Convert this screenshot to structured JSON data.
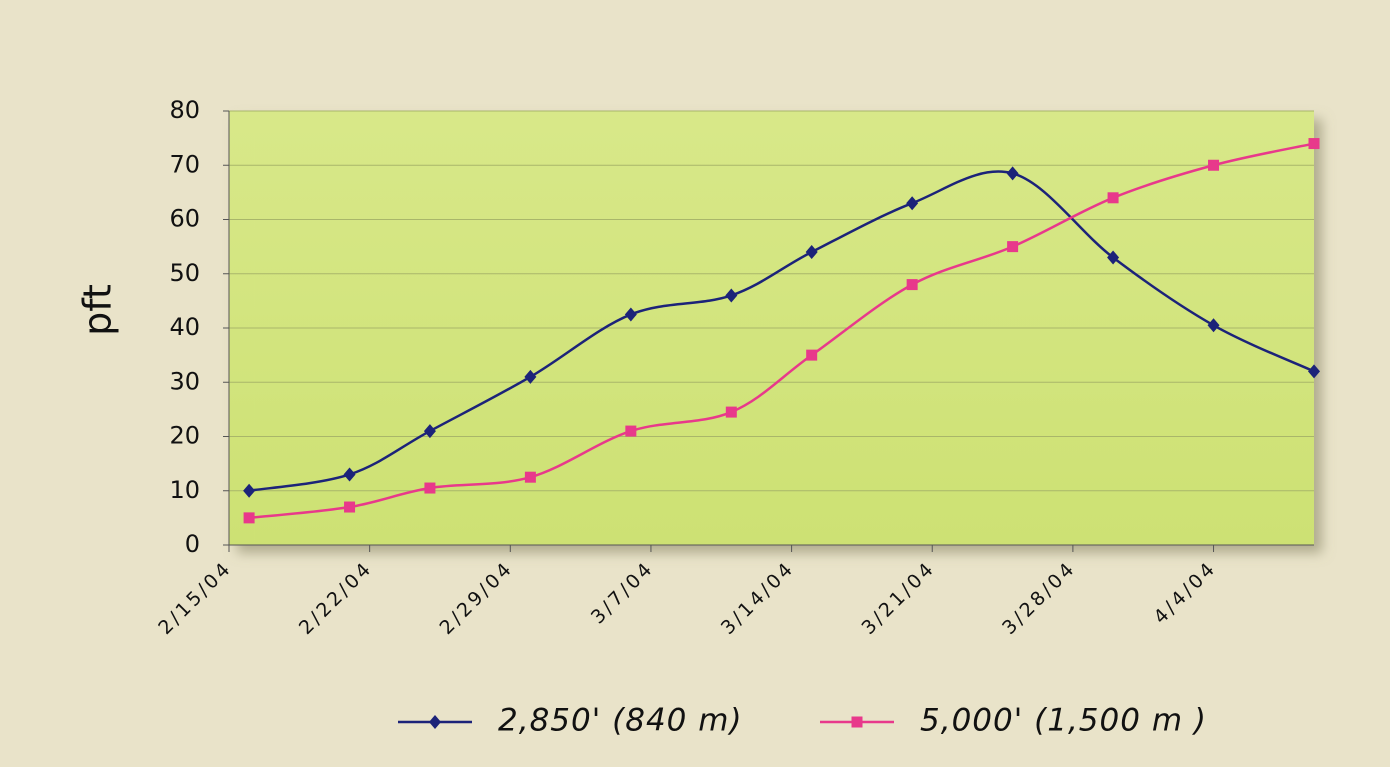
{
  "chart_data": {
    "type": "line",
    "y_label": "pft",
    "x": [
      "2/16/04",
      "2/21/04",
      "2/25/04",
      "3/1/04",
      "3/6/04",
      "3/11/04",
      "3/15/04",
      "3/20/04",
      "3/25/04",
      "3/30/04",
      "4/4/04",
      "4/9/04"
    ],
    "series": [
      {
        "name": "2,850' (840 m)",
        "color": "#1c2379",
        "marker": "diamond",
        "values": [
          10,
          13,
          21,
          31,
          42.5,
          46,
          54,
          63,
          68.5,
          53,
          40.5,
          32
        ]
      },
      {
        "name": "5,000' (1,500 m )",
        "color": "#e8398b",
        "marker": "square",
        "values": [
          5,
          7,
          10.5,
          12.5,
          21,
          24.5,
          35,
          48,
          55,
          64,
          70,
          74
        ]
      }
    ],
    "xlim": [
      "2/15/04",
      "4/9/04"
    ],
    "xticks": [
      "2/15/04",
      "2/22/04",
      "2/29/04",
      "3/7/04",
      "3/14/04",
      "3/21/04",
      "3/28/04",
      "4/4/04"
    ],
    "ylim": [
      0,
      80
    ],
    "yticks": [
      0,
      10,
      20,
      30,
      40,
      50,
      60,
      70,
      80
    ],
    "grid": true,
    "legend": "bottom"
  }
}
